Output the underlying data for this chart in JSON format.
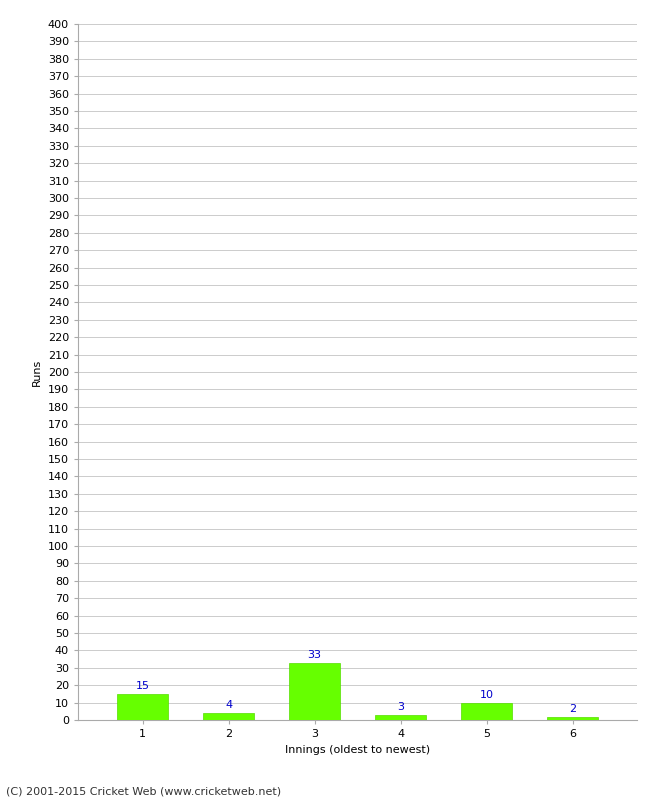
{
  "categories": [
    "1",
    "2",
    "3",
    "4",
    "5",
    "6"
  ],
  "values": [
    15,
    4,
    33,
    3,
    10,
    2
  ],
  "bar_color": "#66ff00",
  "bar_edge_color": "#55dd00",
  "label_color": "#0000cc",
  "xlabel": "Innings (oldest to newest)",
  "ylabel": "Runs",
  "ylim": [
    0,
    400
  ],
  "ytick_step": 10,
  "background_color": "#ffffff",
  "grid_color": "#cccccc",
  "footer_text": "(C) 2001-2015 Cricket Web (www.cricketweb.net)",
  "label_fontsize": 8,
  "axis_label_fontsize": 8,
  "tick_fontsize": 8,
  "footer_fontsize": 8
}
